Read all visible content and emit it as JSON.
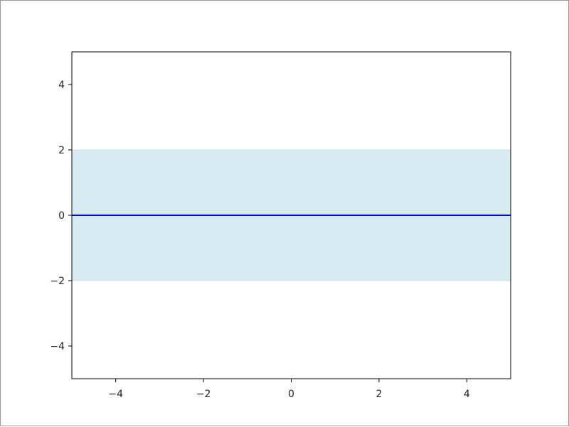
{
  "chart_data": {
    "type": "line",
    "title": "",
    "xlabel": "",
    "ylabel": "",
    "xlim": [
      -5,
      5
    ],
    "ylim": [
      -5,
      5
    ],
    "x_ticks": [
      -4,
      -2,
      0,
      2,
      4
    ],
    "y_ticks": [
      -4,
      -2,
      0,
      2,
      4
    ],
    "x_tick_labels": [
      "−4",
      "−2",
      "0",
      "2",
      "4"
    ],
    "y_tick_labels": [
      "−4",
      "−2",
      "0",
      "2",
      "4"
    ],
    "grid": false,
    "series": [
      {
        "x": [
          -5,
          5
        ],
        "y": [
          0,
          0
        ],
        "color": "#0000ff"
      }
    ],
    "bands": [
      {
        "x": [
          -5,
          5
        ],
        "y_lower": [
          -2,
          -2
        ],
        "y_upper": [
          2,
          2
        ],
        "color": "#add8e6",
        "opacity": 0.5
      }
    ]
  }
}
